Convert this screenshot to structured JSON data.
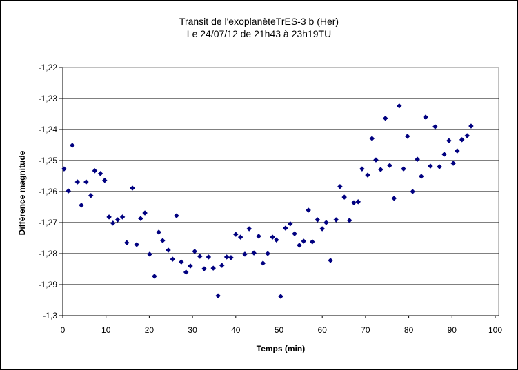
{
  "chart_data": {
    "type": "scatter",
    "title": "Transit de l'exoplanèteTrES-3 b (Her)",
    "subtitle": "Le 24/07/12 de 21h43 à 23h19TU",
    "xlabel": "Temps (min)",
    "ylabel": "Différence magnitude",
    "xlim": [
      0,
      100
    ],
    "ylim": [
      -1.3,
      -1.22
    ],
    "x_ticks": [
      "0",
      "10",
      "20",
      "30",
      "40",
      "50",
      "60",
      "70",
      "80",
      "90",
      "100"
    ],
    "y_ticks": [
      "-1,22",
      "-1,23",
      "-1,24",
      "-1,25",
      "-1,26",
      "-1,27",
      "-1,28",
      "-1,29",
      "-1,3"
    ],
    "grid": "horizontal",
    "legend": null,
    "marker": "diamond",
    "marker_color": "#000080",
    "series": [
      {
        "name": "Différence magnitude",
        "x": [
          0.3,
          1.3,
          2.2,
          3.4,
          4.3,
          5.4,
          6.5,
          7.4,
          8.7,
          9.7,
          10.7,
          11.6,
          12.7,
          13.8,
          14.8,
          16.1,
          17.1,
          18.0,
          19.0,
          20.1,
          21.2,
          22.2,
          23.1,
          24.4,
          25.4,
          26.3,
          27.4,
          28.5,
          29.5,
          30.5,
          31.7,
          32.7,
          33.7,
          34.8,
          35.9,
          36.8,
          37.9,
          38.9,
          40.0,
          41.1,
          42.1,
          43.1,
          44.2,
          45.3,
          46.3,
          47.4,
          48.5,
          49.4,
          50.4,
          51.5,
          52.6,
          53.6,
          54.7,
          55.7,
          56.8,
          57.7,
          58.9,
          60.0,
          60.9,
          61.9,
          63.2,
          64.1,
          65.1,
          66.3,
          67.3,
          68.3,
          69.2,
          70.5,
          71.5,
          72.4,
          73.5,
          74.6,
          75.6,
          76.6,
          77.8,
          78.8,
          79.7,
          80.9,
          82.0,
          82.9,
          83.9,
          85.0,
          86.1,
          87.1,
          88.2,
          89.3,
          90.3,
          91.2,
          92.3,
          93.5,
          94.4
        ],
        "y": [
          -1.2527,
          -1.2598,
          -1.2451,
          -1.2569,
          -1.2644,
          -1.2569,
          -1.2613,
          -1.2533,
          -1.2542,
          -1.2564,
          -1.2682,
          -1.2702,
          -1.2691,
          -1.2682,
          -1.2765,
          -1.2589,
          -1.2771,
          -1.2687,
          -1.2669,
          -1.2802,
          -1.2873,
          -1.2731,
          -1.2758,
          -1.2789,
          -1.2818,
          -1.2678,
          -1.2827,
          -1.286,
          -1.284,
          -1.2793,
          -1.2809,
          -1.2849,
          -1.2811,
          -1.2847,
          -1.2936,
          -1.2838,
          -1.2811,
          -1.2813,
          -1.2738,
          -1.2747,
          -1.2802,
          -1.272,
          -1.2798,
          -1.2744,
          -1.2831,
          -1.28,
          -1.2747,
          -1.2756,
          -1.2938,
          -1.2718,
          -1.2704,
          -1.2736,
          -1.2773,
          -1.276,
          -1.266,
          -1.2762,
          -1.2691,
          -1.272,
          -1.27,
          -1.2822,
          -1.2691,
          -1.2584,
          -1.2618,
          -1.2693,
          -1.2636,
          -1.2633,
          -1.2527,
          -1.2547,
          -1.2429,
          -1.2498,
          -1.2529,
          -1.2364,
          -1.2516,
          -1.2622,
          -1.2324,
          -1.2527,
          -1.2422,
          -1.26,
          -1.2496,
          -1.2551,
          -1.236,
          -1.2518,
          -1.2391,
          -1.252,
          -1.248,
          -1.2436,
          -1.2509,
          -1.2469,
          -1.2433,
          -1.242,
          -1.2389
        ]
      }
    ]
  }
}
